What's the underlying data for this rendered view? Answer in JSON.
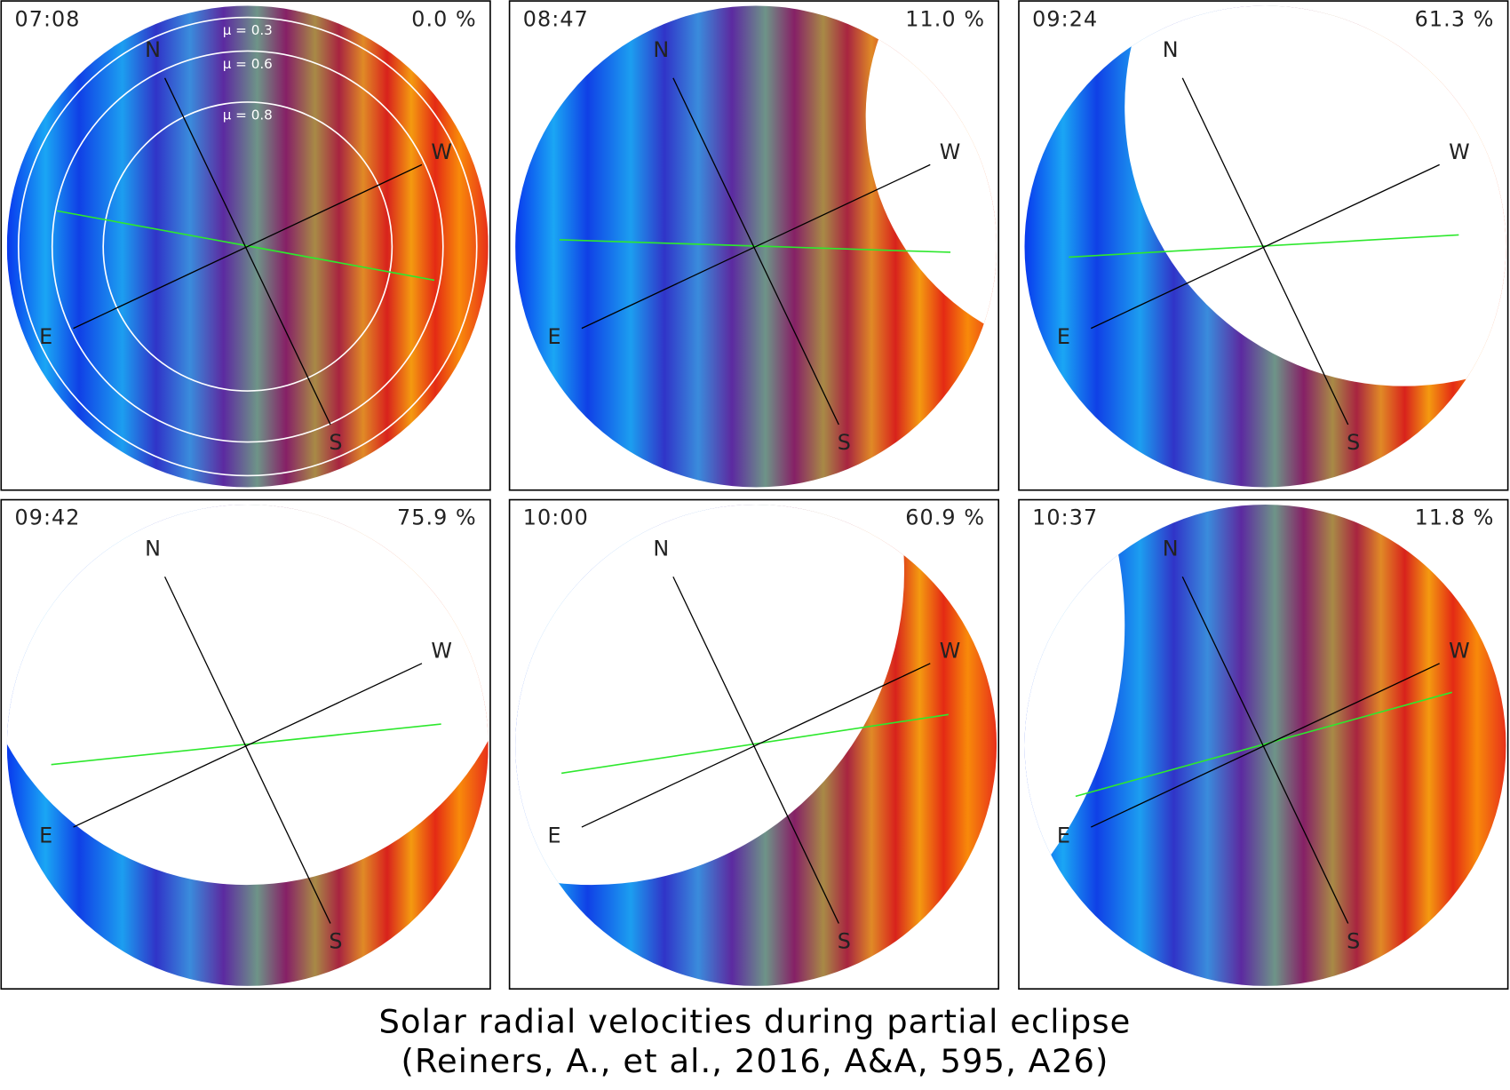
{
  "panels": [
    {
      "time": "07:08",
      "coverage": "0.0 %"
    },
    {
      "time": "08:47",
      "coverage": "11.0 %"
    },
    {
      "time": "09:24",
      "coverage": "61.3 %"
    },
    {
      "time": "09:42",
      "coverage": "75.9 %"
    },
    {
      "time": "10:00",
      "coverage": "60.9 %"
    },
    {
      "time": "10:37",
      "coverage": "11.8 %"
    }
  ],
  "compass_labels": {
    "north": "N",
    "west": "W",
    "south": "S",
    "east": "E"
  },
  "mu_labels": [
    "μ = 0.3",
    "μ = 0.6",
    "μ = 0.8"
  ],
  "caption": [
    "Solar radial velocities during partial eclipse",
    "(Reiners, A., et al., 2016, A&A, 595, A26)"
  ]
}
